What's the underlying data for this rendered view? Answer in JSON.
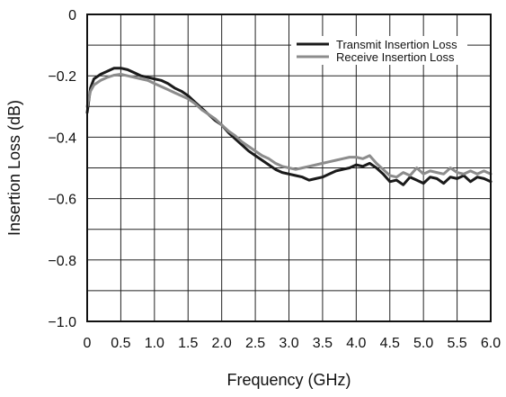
{
  "chart_data": {
    "type": "line",
    "title": "",
    "xlabel": "Frequency (GHz)",
    "ylabel": "Insertion Loss (dB)",
    "xlim": [
      0,
      6.0
    ],
    "ylim": [
      -1.0,
      0
    ],
    "x_ticks": [
      "0",
      "0.5",
      "1.0",
      "1.5",
      "2.0",
      "2.5",
      "3.0",
      "3.5",
      "4.0",
      "4.5",
      "5.0",
      "5.5",
      "6.0"
    ],
    "y_ticks": [
      "0",
      "−0.2",
      "−0.4",
      "−0.6",
      "−0.8",
      "−1.0"
    ],
    "x_tick_values": [
      0,
      0.5,
      1.0,
      1.5,
      2.0,
      2.5,
      3.0,
      3.5,
      4.0,
      4.5,
      5.0,
      5.5,
      6.0
    ],
    "y_tick_values": [
      0,
      -0.2,
      -0.4,
      -0.6,
      -0.8,
      -1.0
    ],
    "grid": true,
    "legend_position": "top-right",
    "series": [
      {
        "name": "Transmit Insertion Loss",
        "color": "#1a1a1a",
        "x": [
          0.0,
          0.05,
          0.1,
          0.2,
          0.3,
          0.4,
          0.5,
          0.6,
          0.7,
          0.8,
          0.9,
          1.0,
          1.1,
          1.2,
          1.3,
          1.4,
          1.5,
          1.6,
          1.7,
          1.8,
          1.9,
          2.0,
          2.1,
          2.2,
          2.3,
          2.4,
          2.5,
          2.6,
          2.7,
          2.8,
          2.9,
          3.0,
          3.1,
          3.2,
          3.3,
          3.4,
          3.5,
          3.6,
          3.7,
          3.8,
          3.9,
          4.0,
          4.1,
          4.2,
          4.3,
          4.4,
          4.5,
          4.6,
          4.7,
          4.8,
          4.9,
          5.0,
          5.1,
          5.2,
          5.3,
          5.4,
          5.5,
          5.6,
          5.7,
          5.8,
          5.9,
          6.0
        ],
        "y": [
          -0.32,
          -0.24,
          -0.21,
          -0.195,
          -0.185,
          -0.175,
          -0.175,
          -0.18,
          -0.19,
          -0.2,
          -0.205,
          -0.21,
          -0.215,
          -0.225,
          -0.24,
          -0.25,
          -0.265,
          -0.285,
          -0.305,
          -0.325,
          -0.345,
          -0.36,
          -0.385,
          -0.405,
          -0.425,
          -0.445,
          -0.46,
          -0.475,
          -0.49,
          -0.505,
          -0.515,
          -0.52,
          -0.525,
          -0.53,
          -0.54,
          -0.535,
          -0.53,
          -0.52,
          -0.51,
          -0.505,
          -0.5,
          -0.49,
          -0.495,
          -0.485,
          -0.5,
          -0.52,
          -0.545,
          -0.54,
          -0.555,
          -0.53,
          -0.54,
          -0.55,
          -0.53,
          -0.535,
          -0.55,
          -0.53,
          -0.535,
          -0.525,
          -0.545,
          -0.53,
          -0.535,
          -0.545
        ]
      },
      {
        "name": "Receive Insertion Loss",
        "color": "#8c8c8c",
        "x": [
          0.0,
          0.05,
          0.1,
          0.2,
          0.3,
          0.4,
          0.5,
          0.6,
          0.7,
          0.8,
          0.9,
          1.0,
          1.1,
          1.2,
          1.3,
          1.4,
          1.5,
          1.6,
          1.7,
          1.8,
          1.9,
          2.0,
          2.1,
          2.2,
          2.3,
          2.4,
          2.5,
          2.6,
          2.7,
          2.8,
          2.9,
          3.0,
          3.1,
          3.2,
          3.3,
          3.4,
          3.5,
          3.6,
          3.7,
          3.8,
          3.9,
          4.0,
          4.1,
          4.2,
          4.3,
          4.4,
          4.5,
          4.6,
          4.7,
          4.8,
          4.9,
          5.0,
          5.1,
          5.2,
          5.3,
          5.4,
          5.5,
          5.6,
          5.7,
          5.8,
          5.9,
          6.0
        ],
        "y": [
          -0.3,
          -0.25,
          -0.23,
          -0.215,
          -0.205,
          -0.198,
          -0.195,
          -0.2,
          -0.205,
          -0.21,
          -0.215,
          -0.225,
          -0.235,
          -0.245,
          -0.255,
          -0.265,
          -0.275,
          -0.29,
          -0.31,
          -0.325,
          -0.34,
          -0.36,
          -0.38,
          -0.395,
          -0.415,
          -0.43,
          -0.445,
          -0.46,
          -0.47,
          -0.485,
          -0.495,
          -0.5,
          -0.505,
          -0.5,
          -0.495,
          -0.49,
          -0.485,
          -0.48,
          -0.475,
          -0.47,
          -0.465,
          -0.465,
          -0.47,
          -0.46,
          -0.485,
          -0.505,
          -0.525,
          -0.53,
          -0.515,
          -0.525,
          -0.5,
          -0.52,
          -0.51,
          -0.515,
          -0.52,
          -0.5,
          -0.515,
          -0.52,
          -0.51,
          -0.52,
          -0.51,
          -0.52
        ]
      }
    ]
  }
}
